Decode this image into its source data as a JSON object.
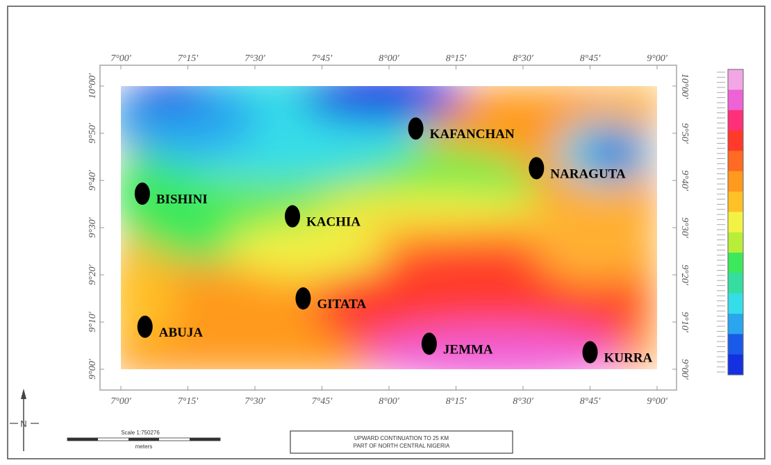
{
  "map": {
    "lon_ticks": [
      "7°00'",
      "7°15'",
      "7°30'",
      "7°45'",
      "8°00'",
      "8°15'",
      "8°30'",
      "8°45'",
      "9°00'"
    ],
    "lat_ticks_left": [
      "10°00'",
      "9°50'",
      "9°40'",
      "9°30'",
      "9°20'",
      "9°10'",
      "9°00'"
    ],
    "lat_ticks_right": [
      "10°00'",
      "9°50'",
      "9°40'",
      "9°30'",
      "9°20'",
      "9°10'",
      "9°00'"
    ],
    "places": [
      {
        "name": "KAFANCHAN",
        "lon": 8.1,
        "lat": 9.85
      },
      {
        "name": "NARAGUTA",
        "lon": 8.55,
        "lat": 9.71
      },
      {
        "name": "BISHINI",
        "lon": 7.08,
        "lat": 9.62
      },
      {
        "name": "KACHIA",
        "lon": 7.64,
        "lat": 9.54
      },
      {
        "name": "GITATA",
        "lon": 7.68,
        "lat": 9.25
      },
      {
        "name": "ABUJA",
        "lon": 7.09,
        "lat": 9.15
      },
      {
        "name": "JEMMA",
        "lon": 8.15,
        "lat": 9.09
      },
      {
        "name": "KURRA",
        "lon": 8.75,
        "lat": 9.06
      }
    ],
    "north_label": "N",
    "colors": {
      "blue": "#1530e0",
      "cyan": "#35dde8",
      "green": "#3ee85c",
      "yellow": "#f2f245",
      "orange": "#ff9a1e",
      "red": "#ff3a2a",
      "magenta": "#f060d8"
    }
  },
  "scale_bar": {
    "label": "Scale 1:750276",
    "units": "meters"
  },
  "title_box": {
    "line1": "UPWARD CONTINUATION TO 25 KM",
    "line2": "PART OF NORTH CENTRAL NIGERIA"
  },
  "colorbar": {
    "colors": [
      "#f3a6e6",
      "#ee62d6",
      "#ff2f7a",
      "#ff3a2a",
      "#ff6a24",
      "#ff9a1e",
      "#ffc028",
      "#f2f245",
      "#b8ee3a",
      "#3ee85c",
      "#35dda0",
      "#35dde8",
      "#2aa6ee",
      "#1a5ae8",
      "#1530e0"
    ]
  }
}
